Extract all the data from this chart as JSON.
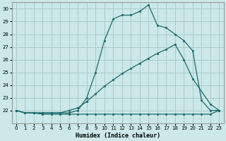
{
  "bg_color": "#cce8e8",
  "grid_color": "#aacccc",
  "line_color": "#1a6b6b",
  "xlabel": "Humidex (Indice chaleur)",
  "xlim": [
    -0.5,
    23.5
  ],
  "ylim": [
    21.0,
    30.5
  ],
  "yticks": [
    22,
    23,
    24,
    25,
    26,
    27,
    28,
    29,
    30
  ],
  "xticks": [
    0,
    1,
    2,
    3,
    4,
    5,
    6,
    7,
    8,
    9,
    10,
    11,
    12,
    13,
    14,
    15,
    16,
    17,
    18,
    19,
    20,
    21,
    22,
    23
  ],
  "line1_x": [
    0,
    1,
    2,
    3,
    4,
    5,
    6,
    7,
    8,
    9,
    10,
    11,
    12,
    13,
    14,
    15,
    16,
    17,
    18,
    19,
    20,
    21,
    22,
    23
  ],
  "line1_y": [
    22,
    21.8,
    21.8,
    21.7,
    21.7,
    21.7,
    21.7,
    21.7,
    21.7,
    21.7,
    21.7,
    21.7,
    21.7,
    21.7,
    21.7,
    21.7,
    21.7,
    21.7,
    21.7,
    21.7,
    21.7,
    21.7,
    21.7,
    22.0
  ],
  "line2_x": [
    0,
    1,
    2,
    3,
    4,
    5,
    6,
    7,
    8,
    9,
    10,
    11,
    12,
    13,
    14,
    15,
    16,
    17,
    18,
    19,
    20,
    22,
    23
  ],
  "line2_y": [
    22,
    21.8,
    21.8,
    21.8,
    21.8,
    21.8,
    22.0,
    22.2,
    22.7,
    23.3,
    23.9,
    24.4,
    24.9,
    25.3,
    25.7,
    26.1,
    26.5,
    26.8,
    27.2,
    26.0,
    24.5,
    22.5,
    22.0
  ],
  "line3_x": [
    0,
    1,
    2,
    3,
    4,
    5,
    6,
    7,
    8,
    9,
    10,
    11,
    12,
    13,
    14,
    15,
    16,
    17,
    18,
    19,
    20,
    21,
    22,
    23
  ],
  "line3_y": [
    22,
    21.8,
    21.8,
    21.8,
    21.8,
    21.8,
    21.8,
    22.0,
    23.0,
    25.0,
    27.5,
    29.2,
    29.5,
    29.5,
    29.8,
    30.3,
    28.7,
    28.5,
    28.0,
    27.5,
    26.7,
    22.8,
    22.0,
    22.0
  ]
}
